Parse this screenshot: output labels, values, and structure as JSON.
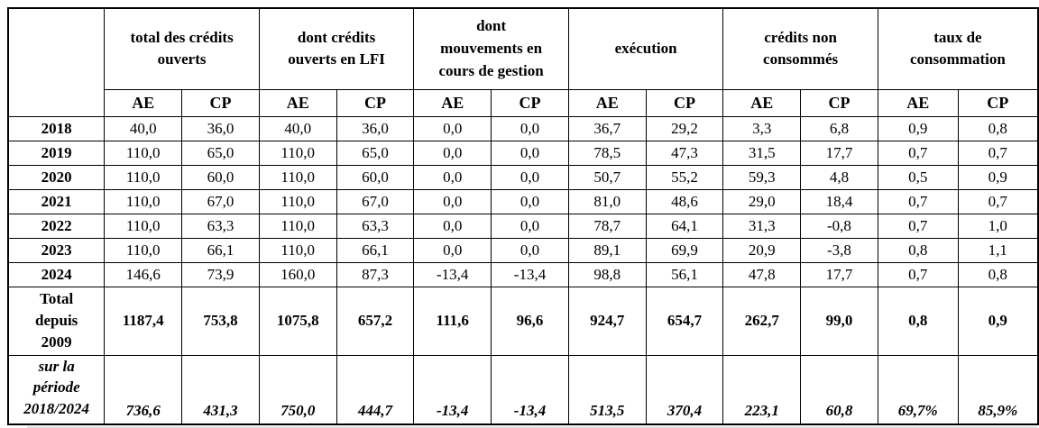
{
  "table": {
    "corner_label": "",
    "groups": [
      {
        "label": "total des crédits\nouverts"
      },
      {
        "label": "dont crédits\nouverts en LFI"
      },
      {
        "label": "dont\nmouvements en\ncours de gestion"
      },
      {
        "label": "exécution"
      },
      {
        "label": "crédits non\nconsommés"
      },
      {
        "label": "taux de\nconsommation"
      }
    ],
    "subheaders": [
      "AE",
      "CP",
      "AE",
      "CP",
      "AE",
      "CP",
      "AE",
      "CP",
      "AE",
      "CP",
      "AE",
      "CP"
    ],
    "rows": [
      {
        "label": "2018",
        "style": "year",
        "values": [
          "40,0",
          "36,0",
          "40,0",
          "36,0",
          "0,0",
          "0,0",
          "36,7",
          "29,2",
          "3,3",
          "6,8",
          "0,9",
          "0,8"
        ]
      },
      {
        "label": "2019",
        "style": "year",
        "values": [
          "110,0",
          "65,0",
          "110,0",
          "65,0",
          "0,0",
          "0,0",
          "78,5",
          "47,3",
          "31,5",
          "17,7",
          "0,7",
          "0,7"
        ]
      },
      {
        "label": "2020",
        "style": "year",
        "values": [
          "110,0",
          "60,0",
          "110,0",
          "60,0",
          "0,0",
          "0,0",
          "50,7",
          "55,2",
          "59,3",
          "4,8",
          "0,5",
          "0,9"
        ]
      },
      {
        "label": "2021",
        "style": "year",
        "values": [
          "110,0",
          "67,0",
          "110,0",
          "67,0",
          "0,0",
          "0,0",
          "81,0",
          "48,6",
          "29,0",
          "18,4",
          "0,7",
          "0,7"
        ]
      },
      {
        "label": "2022",
        "style": "year",
        "values": [
          "110,0",
          "63,3",
          "110,0",
          "63,3",
          "0,0",
          "0,0",
          "78,7",
          "64,1",
          "31,3",
          "-0,8",
          "0,7",
          "1,0"
        ]
      },
      {
        "label": "2023",
        "style": "year",
        "values": [
          "110,0",
          "66,1",
          "110,0",
          "66,1",
          "0,0",
          "0,0",
          "89,1",
          "69,9",
          "20,9",
          "-3,8",
          "0,8",
          "1,1"
        ]
      },
      {
        "label": "2024",
        "style": "year",
        "values": [
          "146,6",
          "73,9",
          "160,0",
          "87,3",
          "-13,4",
          "-13,4",
          "98,8",
          "56,1",
          "47,8",
          "17,7",
          "0,7",
          "0,8"
        ]
      },
      {
        "label": "Total\ndepuis\n2009",
        "style": "total",
        "values": [
          "1187,4",
          "753,8",
          "1075,8",
          "657,2",
          "111,6",
          "96,6",
          "924,7",
          "654,7",
          "262,7",
          "99,0",
          "0,8",
          "0,9"
        ]
      },
      {
        "label": "sur la\npériode\n2018/2024",
        "style": "period",
        "values": [
          "736,6",
          "431,3",
          "750,0",
          "444,7",
          "-13,4",
          "-13,4",
          "513,5",
          "370,4",
          "223,1",
          "60,8",
          "69,7%",
          "85,9%"
        ]
      }
    ]
  }
}
